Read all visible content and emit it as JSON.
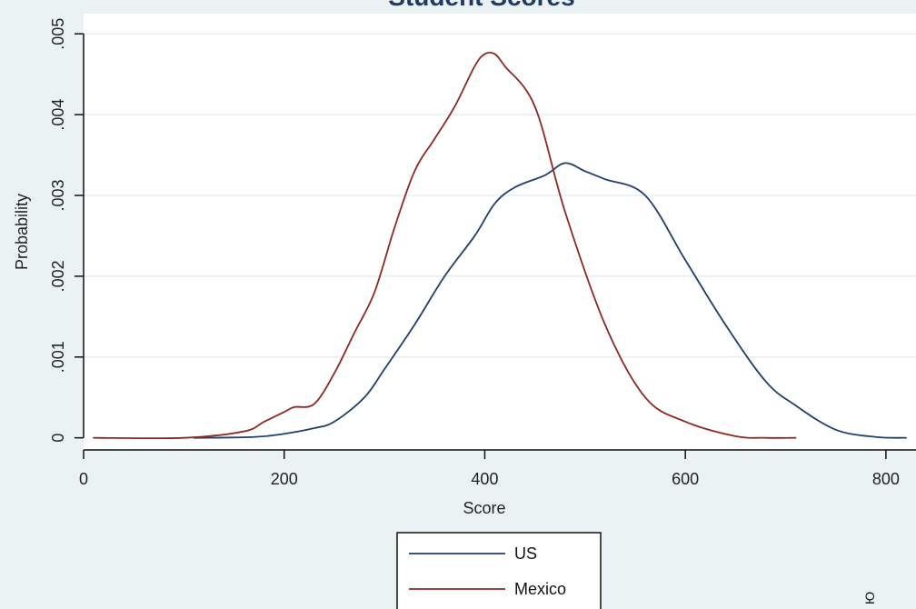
{
  "chart_data": {
    "type": "line",
    "title": "Student Scores",
    "xlabel": "Score",
    "ylabel": "Probability",
    "xlim": [
      0,
      830
    ],
    "ylim": [
      -0.00015,
      0.00525
    ],
    "x_ticks": [
      0,
      200,
      400,
      600,
      800
    ],
    "x_tick_labels": [
      "0",
      "200",
      "400",
      "600",
      "800"
    ],
    "y_ticks": [
      0,
      0.001,
      0.002,
      0.003,
      0.004,
      0.005
    ],
    "y_tick_labels": [
      "0",
      ".001",
      ".002",
      ".003",
      ".004",
      ".005"
    ],
    "grid": true,
    "legend_position": "bottom-center",
    "series": [
      {
        "name": "US",
        "color": "#1f3f6e",
        "x": [
          110,
          170,
          200,
          230,
          250,
          280,
          300,
          330,
          360,
          390,
          410,
          430,
          460,
          480,
          500,
          520,
          560,
          600,
          640,
          680,
          710,
          750,
          790,
          820
        ],
        "y": [
          0.0,
          1e-05,
          5e-05,
          0.00012,
          0.0002,
          0.0005,
          0.00085,
          0.0014,
          0.002,
          0.0025,
          0.0029,
          0.0031,
          0.00325,
          0.0034,
          0.0033,
          0.0032,
          0.003,
          0.0022,
          0.0014,
          0.0007,
          0.0004,
          0.0001,
          1e-05,
          0.0
        ]
      },
      {
        "name": "Mexico",
        "color": "#8b2a22",
        "x": [
          10,
          100,
          160,
          180,
          200,
          210,
          230,
          250,
          270,
          290,
          310,
          330,
          350,
          370,
          390,
          400,
          410,
          420,
          450,
          480,
          520,
          560,
          600,
          650,
          680,
          710
        ],
        "y": [
          0.0,
          0.0,
          8e-05,
          0.0002,
          0.00032,
          0.00038,
          0.00042,
          0.0008,
          0.0013,
          0.0018,
          0.0026,
          0.0033,
          0.0037,
          0.0041,
          0.0046,
          0.00475,
          0.00475,
          0.0046,
          0.0041,
          0.0028,
          0.0014,
          0.0005,
          0.0002,
          2e-05,
          0.0,
          0.0
        ]
      }
    ]
  },
  "corner_note": "Ю"
}
